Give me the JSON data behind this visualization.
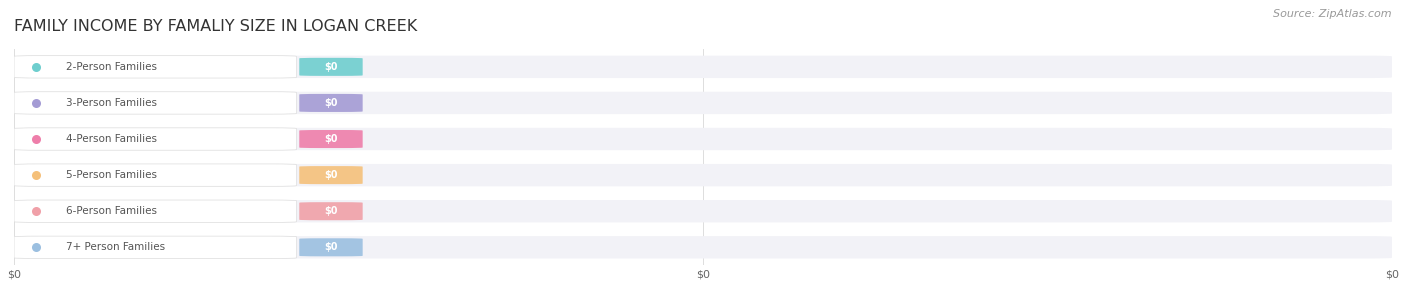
{
  "title": "FAMILY INCOME BY FAMALIY SIZE IN LOGAN CREEK",
  "source_text": "Source: ZipAtlas.com",
  "categories": [
    "2-Person Families",
    "3-Person Families",
    "4-Person Families",
    "5-Person Families",
    "6-Person Families",
    "7+ Person Families"
  ],
  "values": [
    0,
    0,
    0,
    0,
    0,
    0
  ],
  "bar_colors": [
    "#6ecece",
    "#a49bd4",
    "#ee7eaa",
    "#f5c07a",
    "#f0a0a8",
    "#9bbfe0"
  ],
  "bar_bg_color": "#f2f2f7",
  "value_labels": [
    "$0",
    "$0",
    "$0",
    "$0",
    "$0",
    "$0"
  ],
  "x_tick_labels": [
    "$0",
    "$0",
    "$0"
  ],
  "x_tick_positions": [
    0.0,
    0.5,
    1.0
  ],
  "xlim": [
    0.0,
    1.0
  ],
  "background_color": "#ffffff",
  "title_fontsize": 11.5,
  "title_color": "#333333",
  "source_fontsize": 8,
  "source_color": "#999999",
  "label_fontsize": 7.5,
  "value_fontsize": 7
}
